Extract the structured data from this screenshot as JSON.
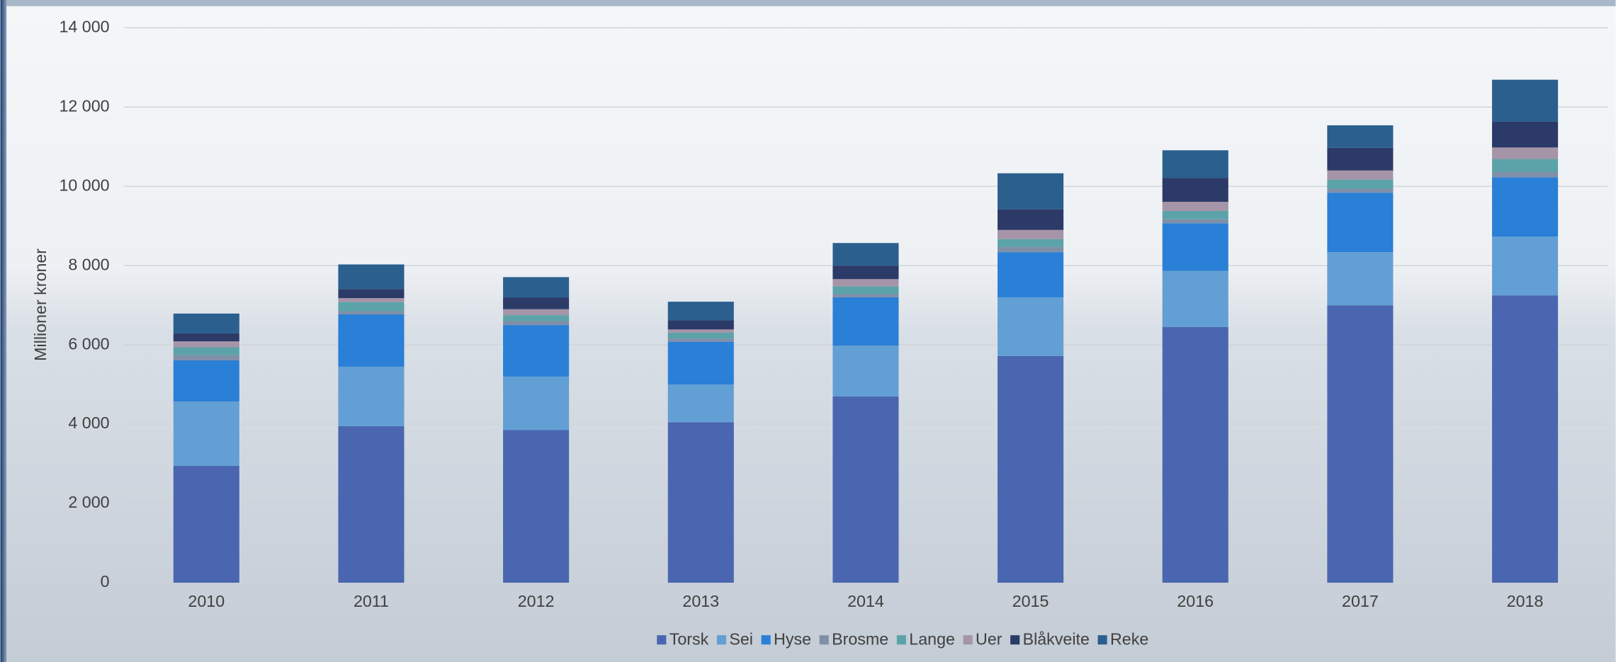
{
  "chart_data": {
    "type": "stacked_bar",
    "y_axis_label": "Millioner kroner",
    "categories": [
      "2010",
      "2011",
      "2012",
      "2013",
      "2014",
      "2015",
      "2016",
      "2017",
      "2018"
    ],
    "series": [
      {
        "name": "Torsk",
        "color": "#4a66b0",
        "values": [
          2950,
          3950,
          3850,
          4050,
          4700,
          5720,
          6450,
          7000,
          7250
        ]
      },
      {
        "name": "Sei",
        "color": "#629fd4",
        "values": [
          1620,
          1500,
          1350,
          950,
          1280,
          1480,
          1420,
          1340,
          1480
        ]
      },
      {
        "name": "Hyse",
        "color": "#2a7fd6",
        "values": [
          1040,
          1320,
          1300,
          1080,
          1220,
          1140,
          1200,
          1500,
          1500
        ]
      },
      {
        "name": "Brosme",
        "color": "#7f8fa8",
        "values": [
          130,
          80,
          100,
          80,
          80,
          130,
          100,
          100,
          130
        ]
      },
      {
        "name": "Lange",
        "color": "#5ba3a8",
        "values": [
          200,
          230,
          150,
          150,
          200,
          200,
          210,
          230,
          330
        ]
      },
      {
        "name": "Uer",
        "color": "#a694a8",
        "values": [
          150,
          100,
          150,
          80,
          180,
          230,
          230,
          230,
          290
        ]
      },
      {
        "name": "Blåkveite",
        "color": "#2c3a68",
        "values": [
          200,
          230,
          290,
          230,
          340,
          520,
          600,
          570,
          650
        ]
      },
      {
        "name": "Reke",
        "color": "#2b5f8e",
        "values": [
          500,
          620,
          520,
          470,
          570,
          910,
          700,
          570,
          1060
        ]
      }
    ],
    "ylim": [
      0,
      14000
    ],
    "yticks": [
      0,
      {
        "value": 2000,
        "label": "2 000"
      },
      {
        "value": 4000,
        "label": "4 000"
      },
      {
        "value": 6000,
        "label": "6 000"
      },
      {
        "value": 8000,
        "label": "8 000"
      },
      {
        "value": 10000,
        "label": "10 000"
      },
      {
        "value": 12000,
        "label": "12 000"
      },
      {
        "value": 14000,
        "label": "14 000"
      }
    ],
    "grid": true,
    "legend": "bottom"
  }
}
